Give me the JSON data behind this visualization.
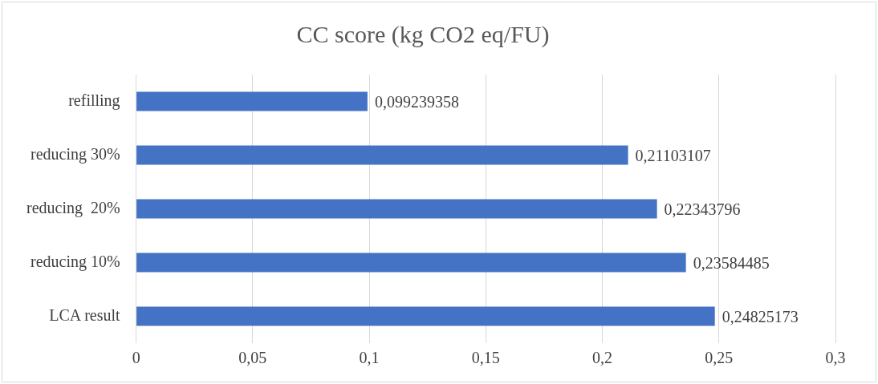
{
  "chart_data": {
    "type": "bar",
    "orientation": "horizontal",
    "title": "CC score (kg CO2 eq/FU)",
    "categories": [
      "refilling",
      "reducing 30%",
      "reducing  20%",
      "reducing 10%",
      "LCA result"
    ],
    "values": [
      0.099239358,
      0.21103107,
      0.22343796,
      0.23584485,
      0.24825173
    ],
    "value_labels": [
      "0,099239358",
      "0,21103107",
      "0,22343796",
      "0,23584485",
      "0,24825173"
    ],
    "color": "#4472c4",
    "xlim": [
      0,
      0.3
    ],
    "xticks": [
      0,
      {
        "value": 0.05,
        "label": "0,05"
      },
      {
        "value": 0.1,
        "label": "0,1"
      },
      {
        "value": 0.15,
        "label": "0,15"
      },
      {
        "value": 0.2,
        "label": "0,2"
      },
      {
        "value": 0.25,
        "label": "0,25"
      },
      {
        "value": 0.3,
        "label": "0,3"
      }
    ],
    "grid": "x"
  }
}
